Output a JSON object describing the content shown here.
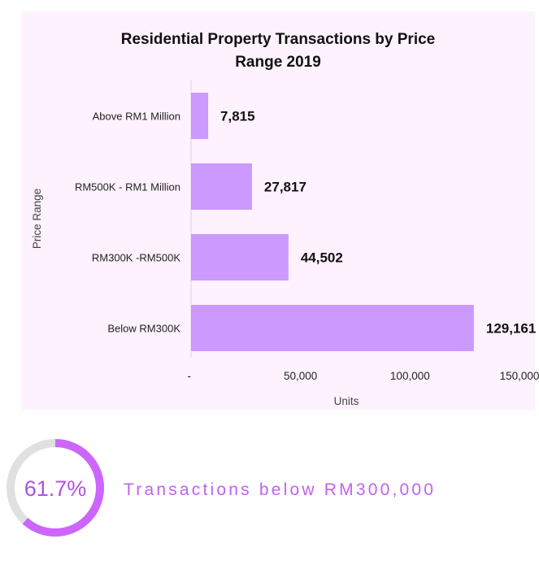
{
  "chart_data": {
    "type": "bar",
    "orientation": "horizontal",
    "title_lines": [
      "Residential Property Transactions by Price",
      "Range 2019"
    ],
    "xlabel": "Units",
    "ylabel": "Price Range",
    "categories": [
      "Above RM1 Million",
      "RM500K - RM1 Million",
      "RM300K -RM500K",
      "Below RM300K"
    ],
    "values": [
      7815,
      27817,
      44502,
      129161
    ],
    "value_labels": [
      "7,815",
      "27,817",
      "44,502",
      "129,161"
    ],
    "xlim": [
      0,
      150000
    ],
    "x_ticks": [
      0,
      50000,
      100000,
      150000
    ],
    "x_tick_labels": [
      "-",
      "50,000",
      "100,000",
      "150,000"
    ],
    "bar_color": "#cc99ff",
    "grid": false
  },
  "stat": {
    "value": 61.7,
    "label": "61.7%",
    "caption": "Transactions below RM300,000",
    "ring_color": "#cc66ff",
    "track_color": "#e0e0e0"
  }
}
